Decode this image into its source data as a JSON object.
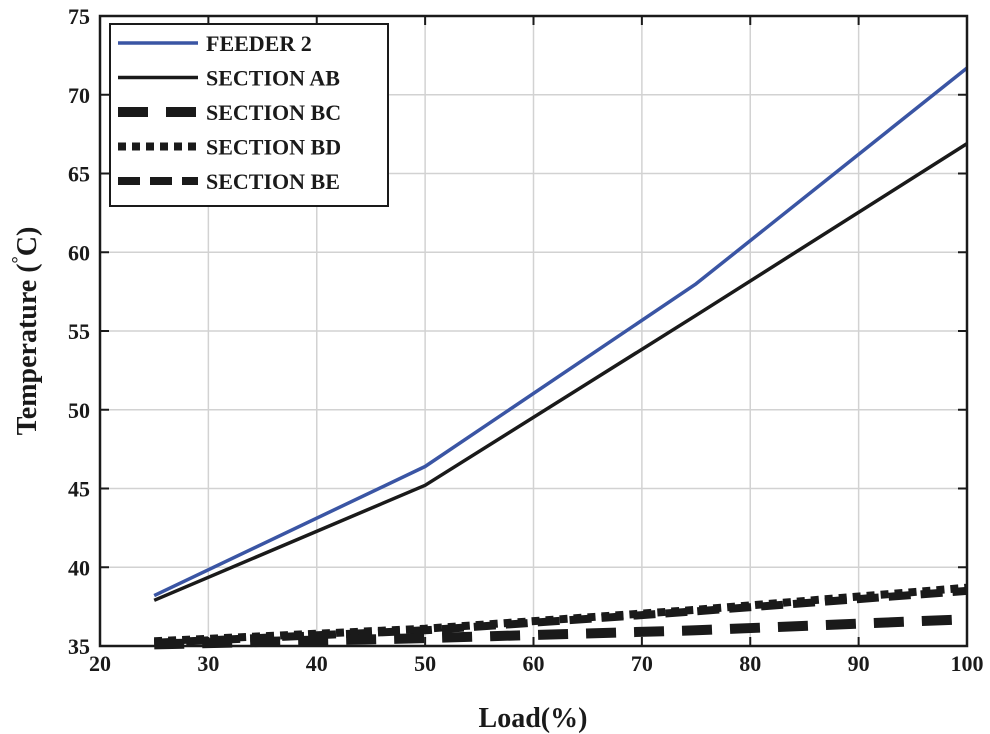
{
  "chart_data": {
    "type": "line",
    "title": "",
    "xlabel": "Load(%)",
    "ylabel_main": "Temperature (",
    "ylabel_degree": "°",
    "ylabel_unit": "C)",
    "xlim": [
      20,
      100
    ],
    "ylim": [
      35,
      75
    ],
    "xticks": [
      20,
      30,
      40,
      50,
      60,
      70,
      80,
      90,
      100
    ],
    "yticks": [
      35,
      40,
      45,
      50,
      55,
      60,
      65,
      70,
      75
    ],
    "grid": true,
    "legend_position": "top-left",
    "series": [
      {
        "name": "FEEDER 2",
        "style": "solid",
        "color": "#3a55a4",
        "x": [
          25,
          50,
          75,
          100
        ],
        "y": [
          38.2,
          46.4,
          58.0,
          71.7
        ]
      },
      {
        "name": "SECTION AB",
        "style": "solid",
        "color": "#1a1a1a",
        "x": [
          25,
          50,
          75,
          100
        ],
        "y": [
          37.9,
          45.2,
          56.0,
          66.9
        ]
      },
      {
        "name": "SECTION BC",
        "style": "dashed",
        "color": "#1a1a1a",
        "x": [
          25,
          50,
          75,
          100
        ],
        "y": [
          35.1,
          35.5,
          36.0,
          36.7
        ]
      },
      {
        "name": "SECTION BD",
        "style": "dotted",
        "color": "#1a1a1a",
        "x": [
          25,
          50,
          75,
          100
        ],
        "y": [
          35.3,
          36.1,
          37.3,
          38.7
        ]
      },
      {
        "name": "SECTION BE",
        "style": "dashdot",
        "color": "#1a1a1a",
        "x": [
          25,
          50,
          75,
          100
        ],
        "y": [
          35.2,
          36.0,
          37.2,
          38.5
        ]
      }
    ]
  }
}
